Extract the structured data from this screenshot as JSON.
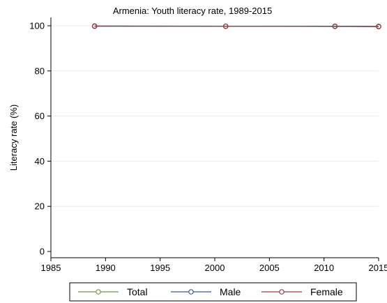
{
  "chart_data": {
    "type": "line",
    "title": "Armenia: Youth literacy rate, 1989-2015",
    "xlabel": "",
    "ylabel": "Literacy rate (%)",
    "xlim": [
      1985,
      2015
    ],
    "ylim": [
      0,
      100
    ],
    "x_ticks": [
      1985,
      1990,
      1995,
      2000,
      2005,
      2010,
      2015
    ],
    "y_ticks": [
      0,
      20,
      40,
      60,
      80,
      100
    ],
    "grid": "horizontal",
    "legend_position": "bottom",
    "x": [
      1989,
      2001,
      2011,
      2015
    ],
    "series": [
      {
        "name": "Total",
        "color": "#6a9a4a",
        "values": [
          99.8,
          99.8,
          99.8,
          99.7
        ]
      },
      {
        "name": "Male",
        "color": "#3b5f8a",
        "values": [
          99.8,
          99.8,
          99.7,
          99.6
        ]
      },
      {
        "name": "Female",
        "color": "#9b3a3a",
        "values": [
          99.9,
          99.8,
          99.8,
          99.7
        ]
      }
    ]
  }
}
